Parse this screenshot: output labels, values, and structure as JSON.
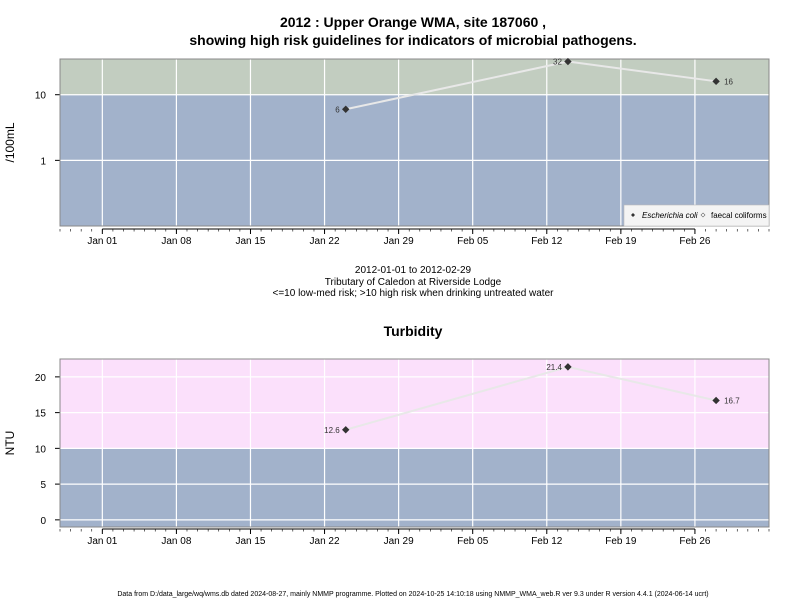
{
  "titles": {
    "main_line1": "2012 : Upper Orange WMA, site 187060 ,",
    "main_line2": "showing high risk guidelines for indicators of microbial pathogens.",
    "micro_sub1": "2012-01-01 to 2012-02-29",
    "micro_sub2": "Tributary of Caledon at Riverside Lodge",
    "micro_sub3": "<=10 low-med risk; >10 high risk when drinking untreated water",
    "turbidity": "Turbidity"
  },
  "footer": "Data from D:/data_large/wq/wms.db dated 2024-08-27, mainly NMMP programme. Plotted on 2024-10-25 14:10:18 using NMMP_WMA_web.R ver 9.3 under R version 4.4.1 (2024-06-14 ucrt)",
  "colors": {
    "low_band": "#a2b2cb",
    "high_band_micro": "#c2cdc0",
    "high_band_turb": "#fbe0fb",
    "series_line": "#e8e8e8",
    "point": "#333333"
  },
  "chart_data": [
    {
      "type": "line",
      "ylabel": "/100mL",
      "yscale": "log",
      "ylim": [
        0.1,
        35
      ],
      "yticks": [
        1,
        10
      ],
      "ytick_labels": [
        "1",
        "10"
      ],
      "threshold": 10,
      "xlim": [
        "2011-12-28",
        "2012-03-04"
      ],
      "xticks": [
        "2012-01-01",
        "2012-01-08",
        "2012-01-15",
        "2012-01-22",
        "2012-01-29",
        "2012-02-05",
        "2012-02-12",
        "2012-02-19",
        "2012-02-26"
      ],
      "xtick_labels": [
        "Jan 01",
        "Jan 08",
        "Jan 15",
        "Jan 22",
        "Jan 29",
        "Feb 05",
        "Feb 12",
        "Feb 19",
        "Feb 26"
      ],
      "series": [
        {
          "name": "Escherichia coli",
          "x": [
            "2012-01-24",
            "2012-02-14",
            "2012-02-28"
          ],
          "values": [
            6,
            32,
            16
          ],
          "labels": [
            "6",
            "32",
            "16"
          ]
        }
      ],
      "legend": {
        "position": "bottom-right",
        "entries": [
          "Escherichia coli",
          "faecal coliforms"
        ]
      },
      "grid": true
    },
    {
      "type": "line",
      "ylabel": "NTU",
      "yscale": "linear",
      "ylim": [
        -1,
        22.5
      ],
      "yticks": [
        0,
        5,
        10,
        15,
        20
      ],
      "ytick_labels": [
        "0",
        "5",
        "10",
        "15",
        "20"
      ],
      "threshold": 10,
      "xlim": [
        "2011-12-28",
        "2012-03-04"
      ],
      "xticks": [
        "2012-01-01",
        "2012-01-08",
        "2012-01-15",
        "2012-01-22",
        "2012-01-29",
        "2012-02-05",
        "2012-02-12",
        "2012-02-19",
        "2012-02-26"
      ],
      "xtick_labels": [
        "Jan 01",
        "Jan 08",
        "Jan 15",
        "Jan 22",
        "Jan 29",
        "Feb 05",
        "Feb 12",
        "Feb 19",
        "Feb 26"
      ],
      "series": [
        {
          "x": [
            "2012-01-24",
            "2012-02-14",
            "2012-02-28"
          ],
          "values": [
            12.6,
            21.4,
            16.7
          ],
          "labels": [
            "12.6",
            "21.4",
            "16.7"
          ]
        }
      ],
      "grid": true
    }
  ]
}
